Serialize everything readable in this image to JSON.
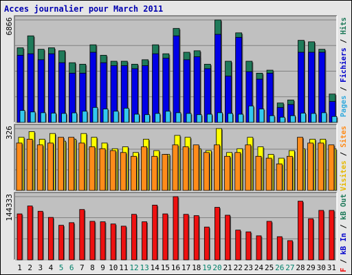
{
  "title": "Acces journalier pour March 2011",
  "colors": {
    "background": "#e6e6e6",
    "panel": "#c0c0c0",
    "gridline": "#808080",
    "hits": "#1f7a5a",
    "files": "#0000e6",
    "pages": "#33c8f0",
    "visits": "#ffff00",
    "sites": "#ff8c1a",
    "kb": "#ee1111",
    "weekend_label": "#00806a",
    "weekday_label": "#000000"
  },
  "right_legends": {
    "top": [
      {
        "text": "Pages",
        "color": "#33aadd"
      },
      {
        "text": " / ",
        "color": "#000000"
      },
      {
        "text": "Fichiers",
        "color": "#0000cc"
      },
      {
        "text": " / ",
        "color": "#000000"
      },
      {
        "text": "Hits",
        "color": "#1f7a5a"
      }
    ],
    "middle": [
      {
        "text": "Visites",
        "color": "#e6b800"
      },
      {
        "text": " / ",
        "color": "#000000"
      },
      {
        "text": "Sites",
        "color": "#ff8c1a"
      }
    ],
    "bottom": [
      {
        "text": "kB F",
        "color": "#ee1111"
      },
      {
        "text": " / ",
        "color": "#000000"
      },
      {
        "text": "kB In",
        "color": "#0000cc"
      },
      {
        "text": " / ",
        "color": "#000000"
      },
      {
        "text": "kB Out",
        "color": "#1f7a5a"
      }
    ]
  },
  "chart_data": {
    "type": "bar",
    "categories": [
      "1",
      "2",
      "3",
      "4",
      "5",
      "6",
      "7",
      "8",
      "9",
      "10",
      "11",
      "12",
      "13",
      "14",
      "15",
      "16",
      "17",
      "18",
      "19",
      "20",
      "21",
      "22",
      "23",
      "24",
      "25",
      "26",
      "27",
      "28",
      "29",
      "30",
      "31"
    ],
    "weekend_days": [
      "5",
      "6",
      "12",
      "13",
      "19",
      "20",
      "26",
      "27"
    ],
    "panels": [
      {
        "name": "hits-files-pages",
        "y_max_label": "6866",
        "ylim": [
          0,
          6866
        ],
        "series": [
          {
            "name": "Hits",
            "values": [
              5000,
              5800,
              4900,
              5000,
              4800,
              4000,
              3900,
              5200,
              4500,
              4100,
              4100,
              3900,
              4200,
              5200,
              4600,
              6300,
              4700,
              4800,
              3900,
              6866,
              4100,
              6000,
              4100,
              3300,
              3500,
              1300,
              1500,
              5500,
              5400,
              4900,
              1900
            ]
          },
          {
            "name": "Fichiers",
            "values": [
              4500,
              4600,
              4200,
              4600,
              4000,
              3300,
              3300,
              4700,
              4000,
              3800,
              3800,
              3600,
              3800,
              4600,
              4300,
              5800,
              4200,
              4400,
              3600,
              5900,
              3100,
              5700,
              3400,
              2900,
              3300,
              1000,
              1200,
              4700,
              4700,
              4700,
              1400
            ]
          },
          {
            "name": "Pages",
            "values": [
              800,
              700,
              650,
              620,
              600,
              640,
              750,
              1000,
              900,
              750,
              950,
              550,
              520,
              600,
              750,
              650,
              600,
              520,
              550,
              650,
              600,
              550,
              1100,
              900,
              450,
              350,
              450,
              620,
              600,
              650,
              400
            ]
          }
        ]
      },
      {
        "name": "visits-sites",
        "y_max_label": "326",
        "ylim": [
          0,
          326
        ],
        "series": [
          {
            "name": "Visites",
            "values": [
              280,
              310,
              270,
              300,
              260,
              270,
              300,
              280,
              250,
              220,
              230,
              200,
              270,
              210,
              190,
              290,
              280,
              220,
              210,
              326,
              200,
              220,
              280,
              230,
              190,
              170,
              210,
              220,
              270,
              270,
              220
            ]
          },
          {
            "name": "Sites",
            "values": [
              250,
              270,
              240,
              250,
              280,
              280,
              250,
              230,
              220,
              210,
              200,
              180,
              230,
              180,
              190,
              240,
              230,
              240,
              200,
              240,
              180,
              200,
              240,
              180,
              170,
              140,
              180,
              280,
              250,
              250,
              240
            ]
          }
        ]
      },
      {
        "name": "kb",
        "y_max_label": "144333",
        "ylim": [
          0,
          144333
        ],
        "series": [
          {
            "name": "kB F",
            "values": [
              105000,
              123000,
              111000,
              97000,
              79000,
              85000,
              115000,
              88000,
              87000,
              82000,
              77000,
              104000,
              87000,
              125000,
              105000,
              144333,
              104000,
              101000,
              75000,
              120000,
              102000,
              68000,
              64000,
              55000,
              88000,
              53000,
              44000,
              134000,
              94000,
              113000,
              113000
            ]
          }
        ]
      }
    ]
  }
}
